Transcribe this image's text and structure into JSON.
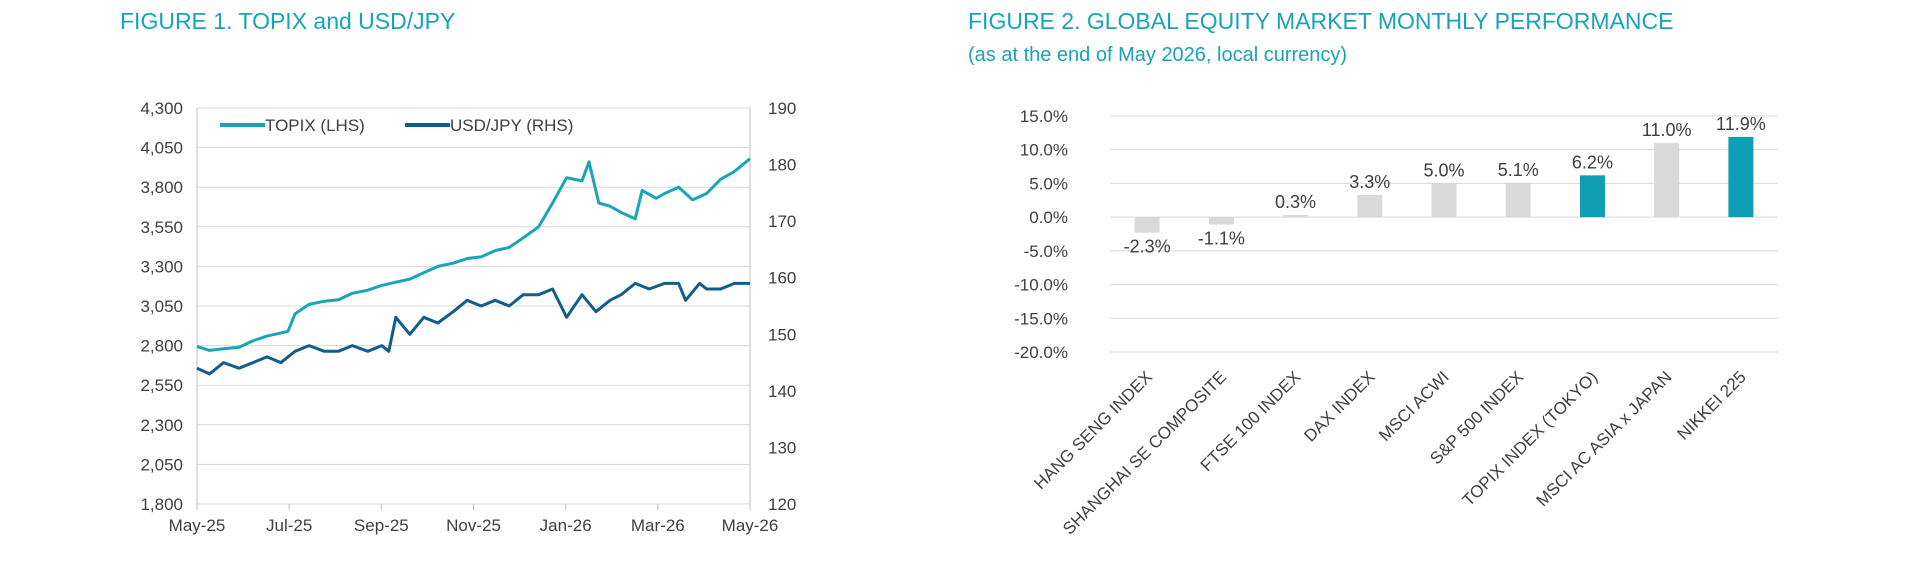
{
  "figure1": {
    "title": "FIGURE 1. TOPIX and USD/JPY"
  },
  "figure2": {
    "title": "FIGURE 2. GLOBAL EQUITY MARKET MONTHLY PERFORMANCE",
    "subtitle": "(as at the end of May 2026, local currency)"
  },
  "colors": {
    "title": "#19a3b6",
    "topix": "#1aa4b8",
    "usdjpy": "#0f5e8c",
    "bar_gray": "#d9d9d9",
    "bar_highlight": "#0f9fb4",
    "grid": "#d9d9d9",
    "axis_text": "#404040"
  },
  "chart_data": [
    {
      "type": "line",
      "title": "FIGURE 1. TOPIX and USD/JPY",
      "x_ticks": [
        "May-25",
        "Jul-25",
        "Sep-25",
        "Nov-25",
        "Jan-26",
        "Mar-26",
        "May-26"
      ],
      "x_range": [
        "2025-05-01",
        "2026-05-31"
      ],
      "y_left": {
        "ticks": [
          1800,
          2050,
          2300,
          2550,
          2800,
          3050,
          3300,
          3550,
          3800,
          4050,
          4300
        ],
        "tick_labels": [
          "1,800",
          "2,050",
          "2,300",
          "2,550",
          "2,800",
          "3,050",
          "3,300",
          "3,550",
          "3,800",
          "4,050",
          "4,300"
        ],
        "range": [
          1800,
          4300
        ]
      },
      "y_right": {
        "ticks": [
          120,
          130,
          140,
          150,
          160,
          170,
          180,
          190
        ],
        "tick_labels": [
          "120",
          "130",
          "140",
          "150",
          "160",
          "170",
          "180",
          "190"
        ],
        "range": [
          120,
          190
        ]
      },
      "grid": true,
      "legend": "top-left",
      "series": [
        {
          "name": "TOPIX (LHS)",
          "axis": "left",
          "points": [
            [
              "2025-05-01",
              2795
            ],
            [
              "2025-05-10",
              2770
            ],
            [
              "2025-05-20",
              2780
            ],
            [
              "2025-05-31",
              2790
            ],
            [
              "2025-06-10",
              2830
            ],
            [
              "2025-06-20",
              2860
            ],
            [
              "2025-06-30",
              2880
            ],
            [
              "2025-07-05",
              2890
            ],
            [
              "2025-07-10",
              3000
            ],
            [
              "2025-07-20",
              3060
            ],
            [
              "2025-07-31",
              3080
            ],
            [
              "2025-08-10",
              3090
            ],
            [
              "2025-08-20",
              3130
            ],
            [
              "2025-08-31",
              3150
            ],
            [
              "2025-09-10",
              3180
            ],
            [
              "2025-09-20",
              3200
            ],
            [
              "2025-09-30",
              3220
            ],
            [
              "2025-10-10",
              3260
            ],
            [
              "2025-10-20",
              3300
            ],
            [
              "2025-10-31",
              3320
            ],
            [
              "2025-11-10",
              3350
            ],
            [
              "2025-11-20",
              3360
            ],
            [
              "2025-11-30",
              3400
            ],
            [
              "2025-12-10",
              3420
            ],
            [
              "2025-12-20",
              3480
            ],
            [
              "2025-12-31",
              3550
            ],
            [
              "2026-01-10",
              3700
            ],
            [
              "2026-01-20",
              3860
            ],
            [
              "2026-01-31",
              3840
            ],
            [
              "2026-02-05",
              3960
            ],
            [
              "2026-02-12",
              3700
            ],
            [
              "2026-02-20",
              3680
            ],
            [
              "2026-02-28",
              3640
            ],
            [
              "2026-03-10",
              3600
            ],
            [
              "2026-03-15",
              3780
            ],
            [
              "2026-03-25",
              3730
            ],
            [
              "2026-03-31",
              3760
            ],
            [
              "2026-04-10",
              3800
            ],
            [
              "2026-04-20",
              3720
            ],
            [
              "2026-04-30",
              3760
            ],
            [
              "2026-05-10",
              3850
            ],
            [
              "2026-05-20",
              3900
            ],
            [
              "2026-05-31",
              3980
            ]
          ]
        },
        {
          "name": "USD/JPY (RHS)",
          "axis": "right",
          "points": [
            [
              "2025-05-01",
              144
            ],
            [
              "2025-05-10",
              143
            ],
            [
              "2025-05-20",
              145
            ],
            [
              "2025-05-31",
              144
            ],
            [
              "2025-06-10",
              145
            ],
            [
              "2025-06-20",
              146
            ],
            [
              "2025-06-30",
              145
            ],
            [
              "2025-07-10",
              147
            ],
            [
              "2025-07-20",
              148
            ],
            [
              "2025-07-31",
              147
            ],
            [
              "2025-08-10",
              147
            ],
            [
              "2025-08-20",
              148
            ],
            [
              "2025-08-31",
              147
            ],
            [
              "2025-09-10",
              148
            ],
            [
              "2025-09-15",
              147
            ],
            [
              "2025-09-20",
              153
            ],
            [
              "2025-09-30",
              150
            ],
            [
              "2025-10-10",
              153
            ],
            [
              "2025-10-20",
              152
            ],
            [
              "2025-10-31",
              154
            ],
            [
              "2025-11-10",
              156
            ],
            [
              "2025-11-20",
              155
            ],
            [
              "2025-11-30",
              156
            ],
            [
              "2025-12-10",
              155
            ],
            [
              "2025-12-20",
              157
            ],
            [
              "2025-12-31",
              157
            ],
            [
              "2026-01-10",
              158
            ],
            [
              "2026-01-20",
              153
            ],
            [
              "2026-01-31",
              157
            ],
            [
              "2026-02-10",
              154
            ],
            [
              "2026-02-20",
              156
            ],
            [
              "2026-02-28",
              157
            ],
            [
              "2026-03-10",
              159
            ],
            [
              "2026-03-20",
              158
            ],
            [
              "2026-03-31",
              159
            ],
            [
              "2026-04-10",
              159
            ],
            [
              "2026-04-15",
              156
            ],
            [
              "2026-04-25",
              159
            ],
            [
              "2026-04-30",
              158
            ],
            [
              "2026-05-10",
              158
            ],
            [
              "2026-05-20",
              159
            ],
            [
              "2026-05-31",
              159
            ]
          ]
        }
      ]
    },
    {
      "type": "bar",
      "title": "FIGURE 2. GLOBAL EQUITY MARKET MONTHLY PERFORMANCE",
      "subtitle": "(as at the end of May 2026, local currency)",
      "categories": [
        "HANG SENG INDEX",
        "SHANGHAI SE COMPOSITE",
        "FTSE 100 INDEX",
        "DAX INDEX",
        "MSCI ACWI",
        "S&P 500 INDEX",
        "TOPIX INDEX (TOKYO)",
        "MSCI AC ASIA x JAPAN",
        "NIKKEI 225"
      ],
      "values": [
        -2.3,
        -1.1,
        0.3,
        3.3,
        5.0,
        5.1,
        6.2,
        11.0,
        11.9
      ],
      "value_labels": [
        "-2.3%",
        "-1.1%",
        "0.3%",
        "3.3%",
        "5.0%",
        "5.1%",
        "6.2%",
        "11.0%",
        "11.9%"
      ],
      "highlighted": [
        false,
        false,
        false,
        false,
        false,
        false,
        true,
        false,
        true
      ],
      "y_ticks": [
        15,
        10,
        5,
        0,
        -5,
        -10,
        -15,
        -20
      ],
      "y_tick_labels": [
        "15.0%",
        "10.0%",
        "5.0%",
        "0.0%",
        "-5.0%",
        "-10.0%",
        "-15.0%",
        "-20.0%"
      ],
      "ylim": [
        -20,
        15
      ],
      "grid": true
    }
  ]
}
